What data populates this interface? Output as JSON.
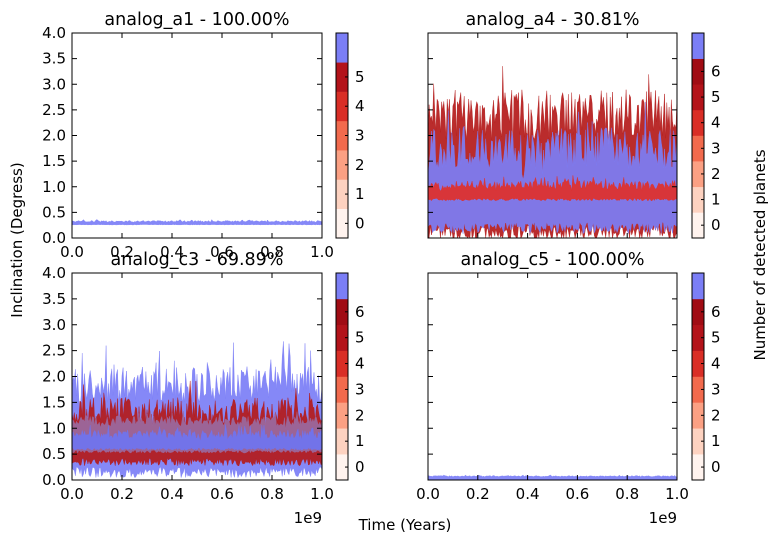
{
  "figure": {
    "xlabel": "Time (Years)",
    "ylabel": "Inclination (Degress)",
    "colorbar_label": "Number of detected planets",
    "x_offset_text": "1e9"
  },
  "chart_data": [
    {
      "type": "area",
      "title": "analog_a1 - 100.00%",
      "xlim": [
        0.0,
        1.0
      ],
      "ylim": [
        0.0,
        4.0
      ],
      "x_ticks": [
        "0.0",
        "0.2",
        "0.4",
        "0.6",
        "0.8",
        "1.0"
      ],
      "y_ticks": [
        "0.0",
        "0.5",
        "1.0",
        "1.5",
        "2.0",
        "2.5",
        "3.0",
        "3.5",
        "4.0"
      ],
      "colorbar_levels": [
        "0",
        "1",
        "2",
        "3",
        "4",
        "5"
      ],
      "bands": [
        {
          "level": 5,
          "color": "#7b7ef6",
          "low": 0.26,
          "high": 0.32,
          "noise": 0.015
        }
      ]
    },
    {
      "type": "area",
      "title": "analog_a4 - 30.81%",
      "xlim": [
        0.0,
        1.0
      ],
      "ylim": [
        0.0,
        4.0
      ],
      "x_ticks": [],
      "y_ticks": [],
      "colorbar_levels": [
        "0",
        "1",
        "2",
        "3",
        "4",
        "5",
        "6"
      ],
      "bands": [
        {
          "level": 4,
          "color": "#b41a1a",
          "low": 0.1,
          "high": 2.2,
          "noise": 0.5
        },
        {
          "level": 6,
          "color": "#7b7ef6",
          "low": 0.2,
          "high": 1.6,
          "noise": 0.4
        },
        {
          "level": 3,
          "color": "#e0302a",
          "low": 0.75,
          "high": 1.0,
          "noise": 0.08
        }
      ]
    },
    {
      "type": "area",
      "title": "analog_c3 - 69.89%",
      "xlim": [
        0.0,
        1.0
      ],
      "ylim": [
        0.0,
        4.0
      ],
      "x_ticks": [
        "0.0",
        "0.2",
        "0.4",
        "0.6",
        "0.8",
        "1.0"
      ],
      "y_ticks": [
        "0.0",
        "0.5",
        "1.0",
        "1.5",
        "2.0",
        "2.5",
        "3.0",
        "3.5",
        "4.0"
      ],
      "colorbar_levels": [
        "0",
        "1",
        "2",
        "3",
        "4",
        "5",
        "6"
      ],
      "bands": [
        {
          "level": 6,
          "color": "#7b7ef6",
          "low": 0.15,
          "high": 1.7,
          "noise": 0.35
        },
        {
          "level": 5,
          "color": "#b41a1a",
          "low": 0.35,
          "high": 1.25,
          "noise": 0.25
        },
        {
          "level": 5,
          "color": "#9a6aa0",
          "low": 0.55,
          "high": 1.1,
          "noise": 0.1
        },
        {
          "level": 6,
          "color": "#6f74f0",
          "low": 0.6,
          "high": 0.85,
          "noise": 0.08
        }
      ]
    },
    {
      "type": "area",
      "title": "analog_c5 - 100.00%",
      "xlim": [
        0.0,
        1.0
      ],
      "ylim": [
        0.0,
        4.0
      ],
      "x_ticks": [
        "0.0",
        "0.2",
        "0.4",
        "0.6",
        "0.8",
        "1.0"
      ],
      "y_ticks": [],
      "colorbar_levels": [
        "0",
        "1",
        "2",
        "3",
        "4",
        "5",
        "6"
      ],
      "bands": [
        {
          "level": 6,
          "color": "#7b7ef6",
          "low": 0.0,
          "high": 0.07,
          "noise": 0.01
        }
      ]
    }
  ],
  "colors": {
    "colorbar_lowest_to_highest": [
      "#fff3ee",
      "#fdd2c0",
      "#fba083",
      "#f26a4d",
      "#d92e26",
      "#b3131a",
      "#a00c14",
      "#7b7ef6"
    ]
  }
}
